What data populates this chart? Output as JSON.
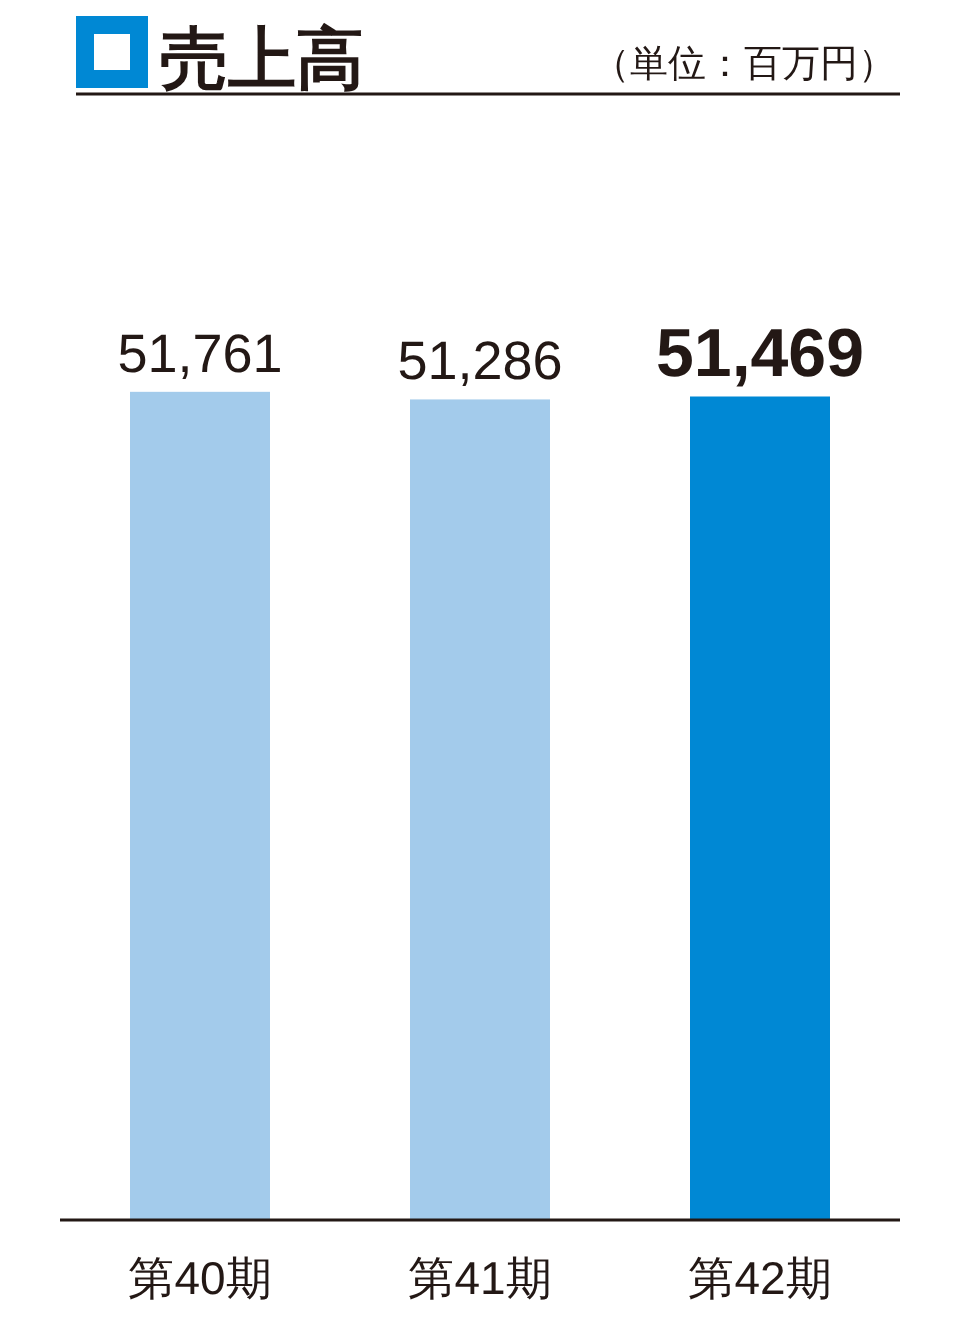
{
  "chart_data": {
    "type": "bar",
    "title": "売上高",
    "subtitle": "（単位：百万円）",
    "categories": [
      "第40期",
      "第41期",
      "第42期"
    ],
    "values": [
      51761,
      51286,
      51469
    ],
    "colors": [
      "#a3cbeb",
      "#a3cbeb",
      "#0088d4"
    ],
    "value_labels": [
      "51,761",
      "51,286",
      "51,469"
    ],
    "ylim": [
      0,
      70000
    ]
  }
}
